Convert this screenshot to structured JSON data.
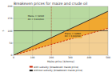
{
  "chart_data": {
    "type": "line",
    "title": "Breakeven prices for maize and crude oil",
    "x_label": "Maize price ($/tonne)",
    "y_label": "$",
    "x": [
      0,
      500
    ],
    "series": [
      {
        "name": "with subsidy (breakeven maize price)",
        "color": "#cc2200",
        "line_style": "dashed",
        "values": [
          0,
          110
        ]
      },
      {
        "name": "without subsidy (breakeven maize price)",
        "color": "#222222",
        "line_style": "solid",
        "values": [
          0,
          180
        ]
      }
    ],
    "hline_y": 100,
    "vline_x": 200,
    "annotations": [
      {
        "text": "Maize = $200t\nOil = $100/bbl",
        "x": 75,
        "y": 145,
        "color": "#b8d9a0"
      },
      {
        "text": "Maize = $280t\nOil = $100/bbl",
        "x": 270,
        "y": 75,
        "color": "#f0a830"
      }
    ],
    "xlim": [
      0,
      500
    ],
    "ylim": [
      0,
      200
    ],
    "xticks": [
      0,
      100,
      200,
      300,
      400,
      500
    ],
    "yticks": [
      0,
      50,
      100,
      150,
      200
    ],
    "grid": true,
    "legend": "bottom"
  }
}
